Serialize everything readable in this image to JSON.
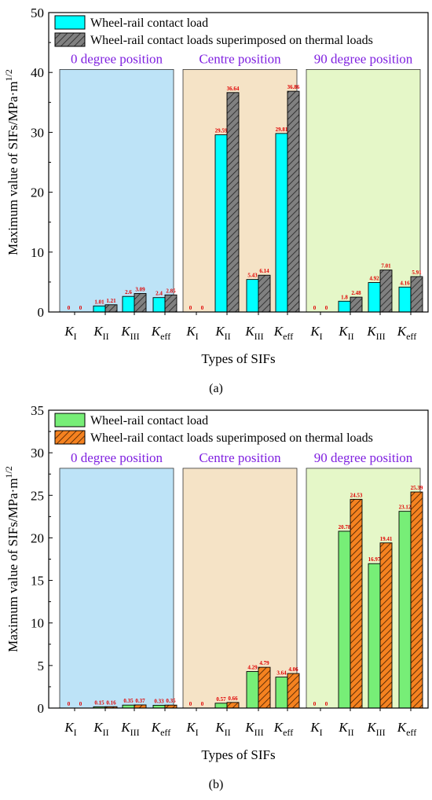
{
  "chart_data": [
    {
      "type": "bar",
      "panel_label": "(a)",
      "xlabel": "Types of SIFs",
      "ylabel": "Maximum value of SIFs/MPa·m",
      "ylabel_exp": "1/2",
      "ylim": [
        0,
        50
      ],
      "yticks": [
        "0",
        "10",
        "20",
        "30",
        "40",
        "50"
      ],
      "legend_placement": "top-left",
      "colors": {
        "contact": "#00FFFF",
        "combined": "#808080",
        "hatch": "#222222"
      },
      "series": [
        {
          "name": "Wheel-rail contact load"
        },
        {
          "name": "Wheel-rail contact loads superimposed on thermal loads"
        }
      ],
      "groups": [
        {
          "label": "0 degree position",
          "bg": "#BDE3F7",
          "categories": [
            {
              "sym": "K",
              "sub": "I",
              "values": [
                0,
                0
              ],
              "labels": [
                "0",
                "0"
              ]
            },
            {
              "sym": "K",
              "sub": "II",
              "values": [
                1.01,
                1.21
              ],
              "labels": [
                "1.01",
                "1.21"
              ]
            },
            {
              "sym": "K",
              "sub": "III",
              "values": [
                2.6,
                3.09
              ],
              "labels": [
                "2.6",
                "3.09"
              ]
            },
            {
              "sym": "K",
              "sub": "eff",
              "values": [
                2.4,
                2.85
              ],
              "labels": [
                "2.4",
                "2.85"
              ]
            }
          ]
        },
        {
          "label": "Centre position",
          "bg": "#F5E3C6",
          "categories": [
            {
              "sym": "K",
              "sub": "I",
              "values": [
                0,
                0
              ],
              "labels": [
                "0",
                "0"
              ]
            },
            {
              "sym": "K",
              "sub": "II",
              "values": [
                29.59,
                36.64
              ],
              "labels": [
                "29.59",
                "36.64"
              ]
            },
            {
              "sym": "K",
              "sub": "III",
              "values": [
                5.43,
                6.14
              ],
              "labels": [
                "5.43",
                "6.14"
              ]
            },
            {
              "sym": "K",
              "sub": "eff",
              "values": [
                29.81,
                36.86
              ],
              "labels": [
                "29.81",
                "36.86"
              ]
            }
          ]
        },
        {
          "label": "90 degree position",
          "bg": "#E5F7C8",
          "categories": [
            {
              "sym": "K",
              "sub": "I",
              "values": [
                0,
                0
              ],
              "labels": [
                "0",
                "0"
              ]
            },
            {
              "sym": "K",
              "sub": "II",
              "values": [
                1.8,
                2.48
              ],
              "labels": [
                "1.8",
                "2.48"
              ]
            },
            {
              "sym": "K",
              "sub": "III",
              "values": [
                4.92,
                7.01
              ],
              "labels": [
                "4.92",
                "7.01"
              ]
            },
            {
              "sym": "K",
              "sub": "eff",
              "values": [
                4.16,
                5.91
              ],
              "labels": [
                "4.16",
                "5.91"
              ]
            }
          ]
        }
      ]
    },
    {
      "type": "bar",
      "panel_label": "(b)",
      "xlabel": "Types of SIFs",
      "ylabel": "Maximum value of SIFs/MPa·m",
      "ylabel_exp": "1/2",
      "ylim": [
        0,
        35
      ],
      "yticks": [
        "0",
        "5",
        "10",
        "15",
        "20",
        "25",
        "30",
        "35"
      ],
      "legend_placement": "top-left",
      "colors": {
        "contact": "#77EE77",
        "combined": "#F58220",
        "hatch": "#3a1a00"
      },
      "series": [
        {
          "name": "Wheel-rail contact load"
        },
        {
          "name": "Wheel-rail contact loads superimposed on thermal loads"
        }
      ],
      "groups": [
        {
          "label": "0 degree position",
          "bg": "#BDE3F7",
          "categories": [
            {
              "sym": "K",
              "sub": "I",
              "values": [
                0,
                0
              ],
              "labels": [
                "0",
                "0"
              ]
            },
            {
              "sym": "K",
              "sub": "II",
              "values": [
                0.15,
                0.16
              ],
              "labels": [
                "0.15",
                "0.16"
              ]
            },
            {
              "sym": "K",
              "sub": "III",
              "values": [
                0.35,
                0.37
              ],
              "labels": [
                "0.35",
                "0.37"
              ]
            },
            {
              "sym": "K",
              "sub": "eff",
              "values": [
                0.33,
                0.35
              ],
              "labels": [
                "0.33",
                "0.35"
              ]
            }
          ]
        },
        {
          "label": "Centre position",
          "bg": "#F5E3C6",
          "categories": [
            {
              "sym": "K",
              "sub": "I",
              "values": [
                0,
                0
              ],
              "labels": [
                "0",
                "0"
              ]
            },
            {
              "sym": "K",
              "sub": "II",
              "values": [
                0.57,
                0.66
              ],
              "labels": [
                "0.57",
                "0.66"
              ]
            },
            {
              "sym": "K",
              "sub": "III",
              "values": [
                4.29,
                4.79
              ],
              "labels": [
                "4.29",
                "4.79"
              ]
            },
            {
              "sym": "K",
              "sub": "eff",
              "values": [
                3.64,
                4.06
              ],
              "labels": [
                "3.64",
                "4.06"
              ]
            }
          ]
        },
        {
          "label": "90 degree position",
          "bg": "#E5F7C8",
          "categories": [
            {
              "sym": "K",
              "sub": "I",
              "values": [
                0,
                0
              ],
              "labels": [
                "0",
                "0"
              ]
            },
            {
              "sym": "K",
              "sub": "II",
              "values": [
                20.78,
                24.53
              ],
              "labels": [
                "20.78",
                "24.53"
              ]
            },
            {
              "sym": "K",
              "sub": "III",
              "values": [
                16.97,
                19.41
              ],
              "labels": [
                "16.97",
                "19.41"
              ]
            },
            {
              "sym": "K",
              "sub": "eff",
              "values": [
                23.12,
                25.39
              ],
              "labels": [
                "23.12",
                "25.39"
              ]
            }
          ]
        }
      ]
    }
  ]
}
